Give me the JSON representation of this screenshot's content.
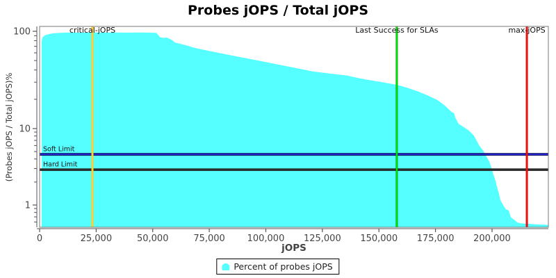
{
  "title": "Probes jOPS / Total jOPS",
  "axes": {
    "x": {
      "label": "jOPS",
      "min": 0,
      "max": 224900,
      "major_ticks": [
        0,
        25000,
        50000,
        75000,
        100000,
        125000,
        150000,
        175000,
        200000
      ]
    },
    "y": {
      "label": "(Probes jOPS / Total jOPS)%",
      "scale": "log",
      "major_ticks": [
        100,
        10,
        1
      ],
      "minor_ticks": [
        90,
        80,
        70,
        60,
        50,
        40,
        30,
        20,
        9,
        8,
        7,
        6,
        5,
        4,
        3,
        2,
        0.9,
        0.8,
        0.7,
        0.6
      ],
      "min": 0.5,
      "max": 112
    }
  },
  "legend": {
    "label": "Percent of probes jOPS",
    "swatch_color": "#55FFFF"
  },
  "chart_data": {
    "type": "area",
    "title": "Probes jOPS / Total jOPS",
    "xlabel": "jOPS",
    "ylabel": "(Probes jOPS / Total jOPS)%",
    "series": [
      {
        "name": "Percent of probes jOPS",
        "color": "#55FFFF",
        "points": [
          [
            900,
            78
          ],
          [
            1300,
            87
          ],
          [
            2800,
            92
          ],
          [
            5500,
            95
          ],
          [
            9000,
            96.5
          ],
          [
            13500,
            97.2
          ],
          [
            18500,
            96.8
          ],
          [
            23350,
            97.4
          ],
          [
            28000,
            96.9
          ],
          [
            33000,
            97.3
          ],
          [
            38500,
            96.8
          ],
          [
            44000,
            97.3
          ],
          [
            48500,
            96.8
          ],
          [
            51600,
            96.4
          ],
          [
            53200,
            87
          ],
          [
            54700,
            85.5
          ],
          [
            56200,
            86.3
          ],
          [
            58400,
            81.5
          ],
          [
            59900,
            76.5
          ],
          [
            62400,
            74
          ],
          [
            65400,
            71
          ],
          [
            68500,
            67.5
          ],
          [
            74700,
            63
          ],
          [
            82300,
            58
          ],
          [
            90000,
            53.5
          ],
          [
            97700,
            49.5
          ],
          [
            105400,
            45.5
          ],
          [
            113100,
            42
          ],
          [
            120700,
            38.7
          ],
          [
            128400,
            36.7
          ],
          [
            136100,
            35
          ],
          [
            141000,
            33
          ],
          [
            145300,
            31.6
          ],
          [
            151400,
            30
          ],
          [
            157900,
            28.2
          ],
          [
            162300,
            26.4
          ],
          [
            166800,
            24.3
          ],
          [
            171400,
            22
          ],
          [
            176000,
            19.6
          ],
          [
            179100,
            17.3
          ],
          [
            182200,
            14.8
          ],
          [
            183200,
            14.4
          ],
          [
            183800,
            12.9
          ],
          [
            185200,
            11.2
          ],
          [
            187700,
            10.3
          ],
          [
            189800,
            9.4
          ],
          [
            192000,
            8.1
          ],
          [
            194500,
            5.9
          ],
          [
            196000,
            5.2
          ],
          [
            197500,
            4.3
          ],
          [
            198800,
            3.7
          ],
          [
            199700,
            3.1
          ],
          [
            200600,
            2.5
          ],
          [
            201500,
            2.1
          ],
          [
            202100,
            1.76
          ],
          [
            203000,
            1.43
          ],
          [
            203700,
            1.16
          ],
          [
            204900,
            1.0
          ],
          [
            206100,
            0.88
          ],
          [
            207400,
            0.85
          ],
          [
            208300,
            0.69
          ],
          [
            209800,
            0.64
          ],
          [
            211300,
            0.59
          ],
          [
            212900,
            0.575
          ],
          [
            215300,
            0.57
          ],
          [
            219000,
            0.56
          ],
          [
            224900,
            0.55
          ]
        ]
      }
    ],
    "markers": {
      "vertical": [
        {
          "id": "critical",
          "label": "critical-jOPS",
          "x": 23350,
          "color": "#FFC800",
          "core": "#FFD34D"
        },
        {
          "id": "last-success",
          "label": "Last Success for SLAs",
          "x": 157900,
          "color": "#009A00",
          "core": "#00FF00"
        },
        {
          "id": "max",
          "label": "max-jOPS",
          "x": 215400,
          "color": "#C80000",
          "core": "#FF1A1A"
        }
      ],
      "horizontal": [
        {
          "id": "soft-limit",
          "label": "Soft Limit",
          "y": 4.6,
          "color": "#000046",
          "core": "#2B2BEF"
        },
        {
          "id": "hard-limit",
          "label": "Hard Limit",
          "y": 2.9,
          "color": "#1A1A1A",
          "core": "#333333"
        }
      ]
    }
  }
}
